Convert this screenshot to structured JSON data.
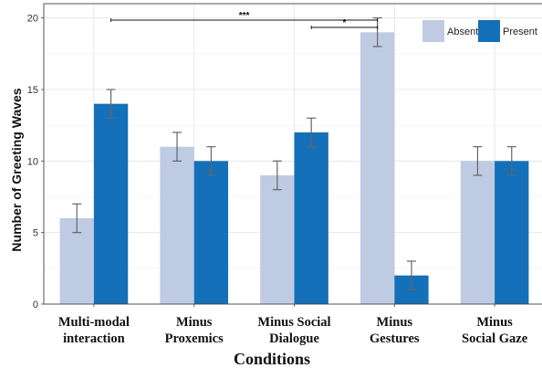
{
  "chart_data": {
    "type": "bar",
    "xlabel": "Conditions",
    "ylabel": "Number of Greeting Waves",
    "ylim": [
      0,
      21
    ],
    "yticks": [
      0,
      5,
      10,
      15,
      20
    ],
    "grid": true,
    "legend_position": "top-right",
    "categories": [
      [
        "Multi-modal",
        "interaction"
      ],
      [
        "Minus",
        "Proxemics"
      ],
      [
        "Minus Social",
        "Dialogue"
      ],
      [
        "Minus",
        "Gestures"
      ],
      [
        "Minus",
        "Social Gaze"
      ]
    ],
    "series": [
      {
        "name": "Absent",
        "color": "#bfcbe3",
        "values": [
          6,
          11,
          9,
          19,
          10
        ],
        "errors": [
          1,
          1,
          1,
          1,
          1
        ]
      },
      {
        "name": "Present",
        "color": "#1470b8",
        "values": [
          14,
          10,
          12,
          2,
          10
        ],
        "errors": [
          1,
          1,
          1,
          1,
          1
        ]
      }
    ],
    "significance": [
      {
        "from_category": 0,
        "to_category": 3,
        "label": "***"
      },
      {
        "from_category": 2,
        "to_category": 3,
        "label": "*"
      }
    ]
  }
}
